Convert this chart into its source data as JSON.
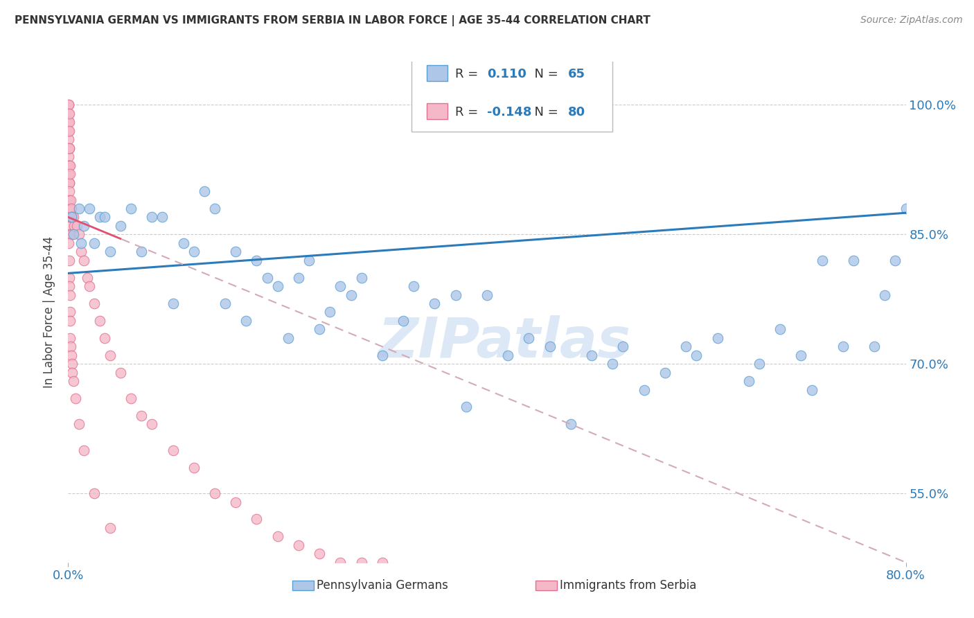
{
  "title": "PENNSYLVANIA GERMAN VS IMMIGRANTS FROM SERBIA IN LABOR FORCE | AGE 35-44 CORRELATION CHART",
  "source": "Source: ZipAtlas.com",
  "ylabel": "In Labor Force | Age 35-44",
  "ytick_values": [
    0.55,
    0.7,
    0.85,
    1.0
  ],
  "ytick_labels": [
    "55.0%",
    "70.0%",
    "85.0%",
    "100.0%"
  ],
  "xlim": [
    0,
    80
  ],
  "ylim": [
    0.47,
    1.05
  ],
  "blue_color": "#aec6e8",
  "blue_edge_color": "#5a9fd4",
  "pink_color": "#f5b8c8",
  "pink_edge_color": "#e07090",
  "blue_line_color": "#2b7bba",
  "pink_line_color": "#d4aab8",
  "pink_solid_color": "#e05070",
  "watermark_text": "ZIPatlas",
  "watermark_color": "#dce8f5",
  "legend_label_blue": "Pennsylvania Germans",
  "legend_label_pink": "Immigrants from Serbia",
  "r_blue": "0.110",
  "n_blue": "65",
  "r_pink": "-0.148",
  "n_pink": "80",
  "blue_scatter_x": [
    0.3,
    0.5,
    1.0,
    1.2,
    1.5,
    2.0,
    2.5,
    3.0,
    3.5,
    4.0,
    5.0,
    6.0,
    7.0,
    8.0,
    9.0,
    10.0,
    11.0,
    12.0,
    13.0,
    14.0,
    15.0,
    16.0,
    17.0,
    18.0,
    19.0,
    20.0,
    21.0,
    22.0,
    23.0,
    24.0,
    25.0,
    26.0,
    27.0,
    28.0,
    30.0,
    32.0,
    33.0,
    35.0,
    37.0,
    38.0,
    40.0,
    42.0,
    44.0,
    46.0,
    48.0,
    50.0,
    52.0,
    53.0,
    55.0,
    57.0,
    59.0,
    60.0,
    62.0,
    65.0,
    66.0,
    68.0,
    70.0,
    71.0,
    72.0,
    74.0,
    75.0,
    77.0,
    78.0,
    79.0,
    80.0
  ],
  "blue_scatter_y": [
    0.87,
    0.85,
    0.88,
    0.84,
    0.86,
    0.88,
    0.84,
    0.87,
    0.87,
    0.83,
    0.86,
    0.88,
    0.83,
    0.87,
    0.87,
    0.77,
    0.84,
    0.83,
    0.9,
    0.88,
    0.77,
    0.83,
    0.75,
    0.82,
    0.8,
    0.79,
    0.73,
    0.8,
    0.82,
    0.74,
    0.76,
    0.79,
    0.78,
    0.8,
    0.71,
    0.75,
    0.79,
    0.77,
    0.78,
    0.65,
    0.78,
    0.71,
    0.73,
    0.72,
    0.63,
    0.71,
    0.7,
    0.72,
    0.67,
    0.69,
    0.72,
    0.71,
    0.73,
    0.68,
    0.7,
    0.74,
    0.71,
    0.67,
    0.82,
    0.72,
    0.82,
    0.72,
    0.78,
    0.82,
    0.88
  ],
  "pink_scatter_x": [
    0.05,
    0.05,
    0.05,
    0.05,
    0.05,
    0.05,
    0.05,
    0.05,
    0.05,
    0.05,
    0.05,
    0.08,
    0.08,
    0.08,
    0.08,
    0.1,
    0.1,
    0.1,
    0.1,
    0.1,
    0.1,
    0.1,
    0.1,
    0.1,
    0.1,
    0.1,
    0.15,
    0.15,
    0.2,
    0.2,
    0.25,
    0.3,
    0.3,
    0.4,
    0.5,
    0.6,
    0.8,
    1.0,
    1.2,
    1.5,
    1.8,
    2.0,
    2.5,
    3.0,
    3.5,
    4.0,
    5.0,
    6.0,
    7.0,
    8.0,
    10.0,
    12.0,
    14.0,
    16.0,
    18.0,
    20.0,
    22.0,
    24.0,
    26.0,
    28.0,
    30.0,
    32.0,
    0.05,
    0.08,
    0.1,
    0.12,
    0.15,
    0.15,
    0.2,
    0.2,
    0.25,
    0.3,
    0.35,
    0.4,
    0.5,
    0.7,
    1.0,
    1.5,
    2.5,
    4.0
  ],
  "pink_scatter_y": [
    1.0,
    1.0,
    0.99,
    0.98,
    0.97,
    0.96,
    0.95,
    0.94,
    0.93,
    0.92,
    0.91,
    0.98,
    0.95,
    0.93,
    0.91,
    0.99,
    0.97,
    0.95,
    0.93,
    0.91,
    0.9,
    0.89,
    0.88,
    0.87,
    0.86,
    0.85,
    0.93,
    0.88,
    0.92,
    0.87,
    0.89,
    0.88,
    0.85,
    0.87,
    0.87,
    0.86,
    0.86,
    0.85,
    0.83,
    0.82,
    0.8,
    0.79,
    0.77,
    0.75,
    0.73,
    0.71,
    0.69,
    0.66,
    0.64,
    0.63,
    0.6,
    0.58,
    0.55,
    0.54,
    0.52,
    0.5,
    0.49,
    0.48,
    0.47,
    0.47,
    0.47,
    0.46,
    0.84,
    0.82,
    0.8,
    0.79,
    0.78,
    0.76,
    0.75,
    0.73,
    0.72,
    0.71,
    0.7,
    0.69,
    0.68,
    0.66,
    0.63,
    0.6,
    0.55,
    0.51
  ],
  "blue_trend_x0": 0,
  "blue_trend_x1": 80,
  "blue_trend_y0": 0.805,
  "blue_trend_y1": 0.875,
  "pink_trend_x0": 0,
  "pink_trend_x1": 80,
  "pink_trend_y0": 0.87,
  "pink_trend_y1": 0.47,
  "background_color": "#ffffff",
  "grid_color": "#cccccc",
  "tick_label_color": "#2b7bba",
  "title_color": "#333333",
  "source_color": "#888888",
  "ylabel_color": "#444444"
}
